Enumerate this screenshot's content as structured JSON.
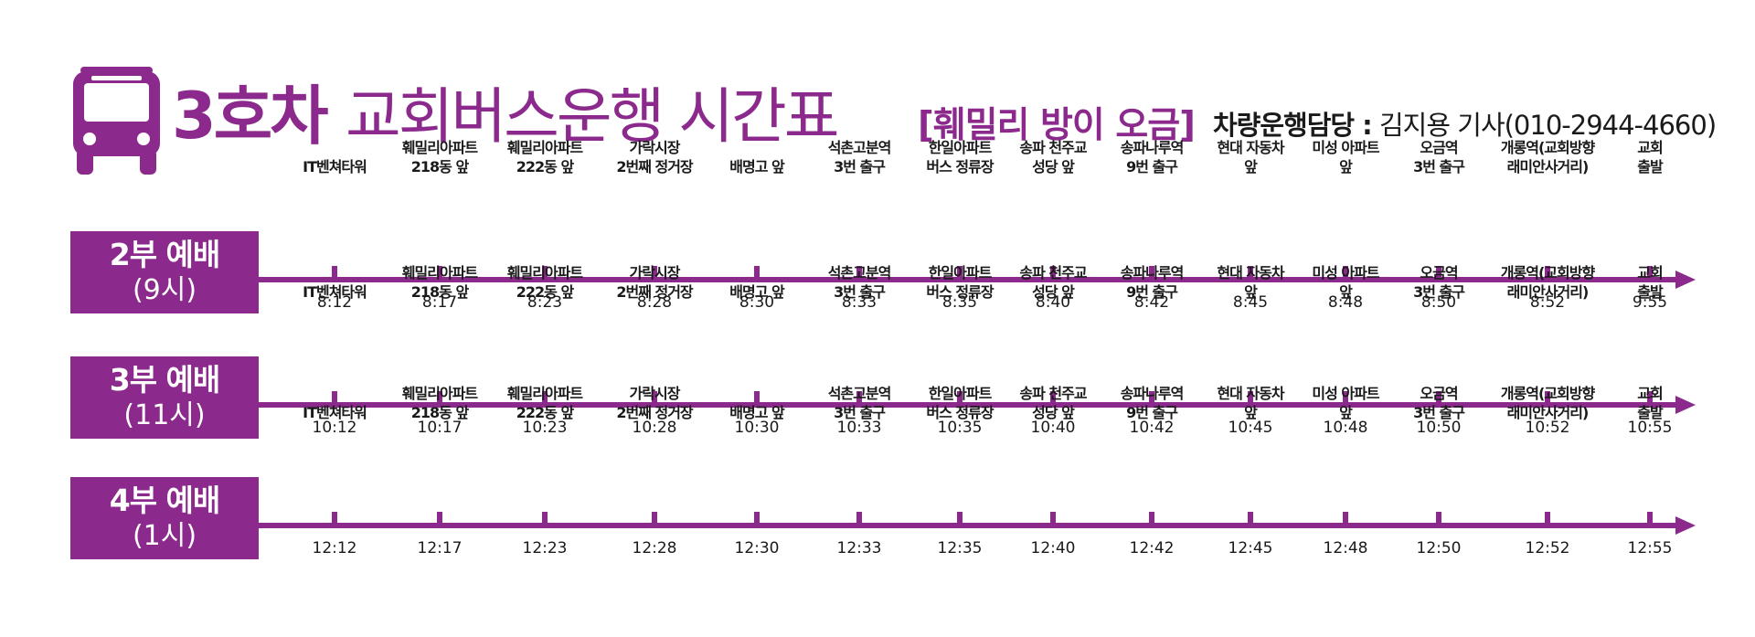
{
  "header": {
    "title_number": "3호차",
    "title_main": "교회버스운행 시간표",
    "title_sub": "[훼밀리 방이 오금]",
    "driver_label": "차량운행담당 :",
    "driver_value": "김지용 기사(010-2944-4660)",
    "icon": "bus-icon"
  },
  "colors": {
    "accent": "#8b2a8c",
    "text": "#1a1a1a"
  },
  "stops": [
    "IT벤쳐타워",
    "훼밀리아파트\n218동 앞",
    "훼밀리아파트\n222동 앞",
    "가락시장\n2번째 정거장",
    "배명고 앞",
    "석촌고분역\n3번 출구",
    "한일아파트\n버스 정류장",
    "송파 천주교\n성당 앞",
    "송파나루역\n9번 출구",
    "현대 자동차\n앞",
    "미성 아파트\n앞",
    "오금역\n3번 출구",
    "개롱역(교회방향\n래미안사거리)",
    "교회\n출발"
  ],
  "services": [
    {
      "name": "2부 예배",
      "time": "(9시)",
      "times": [
        "8:12",
        "8:17",
        "8:23",
        "8:28",
        "8:30",
        "8:33",
        "8:35",
        "8:40",
        "8:42",
        "8:45",
        "8:48",
        "8:50",
        "8:52",
        "9:55"
      ]
    },
    {
      "name": "3부 예배",
      "time": "(11시)",
      "times": [
        "10:12",
        "10:17",
        "10:23",
        "10:28",
        "10:30",
        "10:33",
        "10:35",
        "10:40",
        "10:42",
        "10:45",
        "10:48",
        "10:50",
        "10:52",
        "10:55"
      ]
    },
    {
      "name": "4부 예배",
      "time": "(1시)",
      "times": [
        "12:12",
        "12:17",
        "12:23",
        "12:28",
        "12:30",
        "12:33",
        "12:35",
        "12:40",
        "12:42",
        "12:45",
        "12:48",
        "12:50",
        "12:52",
        "12:55"
      ]
    }
  ]
}
